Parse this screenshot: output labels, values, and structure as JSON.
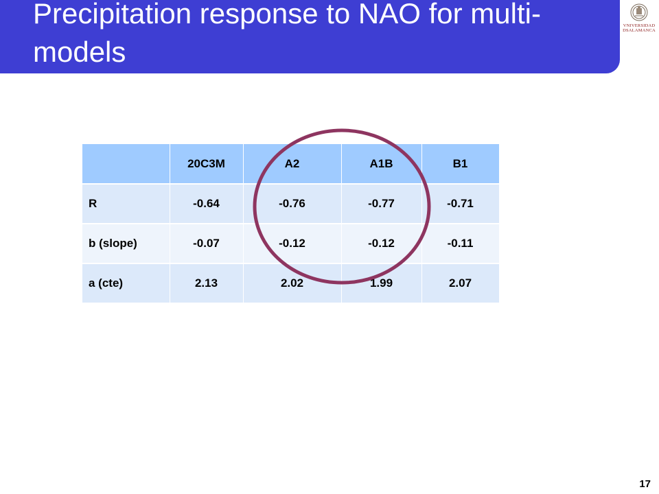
{
  "slide": {
    "title": "Precipitation response to NAO for multi-models",
    "page_number": "17"
  },
  "logo": {
    "line1": "VNIVERSIDAD",
    "line2": "DSALAMANCA"
  },
  "table": {
    "headers": [
      "",
      "20C3M",
      "A2",
      "A1B",
      "B1"
    ],
    "rows": [
      {
        "label": "R",
        "values": [
          "-0.64",
          "-0.76",
          "-0.77",
          "-0.71"
        ]
      },
      {
        "label": "b (slope)",
        "values": [
          "-0.07",
          "-0.12",
          "-0.12",
          "-0.11"
        ]
      },
      {
        "label": "a (cte)",
        "values": [
          "2.13",
          "2.02",
          "1.99",
          "2.07"
        ]
      }
    ]
  },
  "colors": {
    "title_bar": "#3e3ed3",
    "header_fill": "#9fcbff",
    "row_fill": "#dce9fa",
    "ellipse_stroke": "#8e3560",
    "logo_red": "#8b1c1c"
  },
  "icons": {
    "logo": "university-seal-icon",
    "highlight": "highlight-ellipse"
  }
}
